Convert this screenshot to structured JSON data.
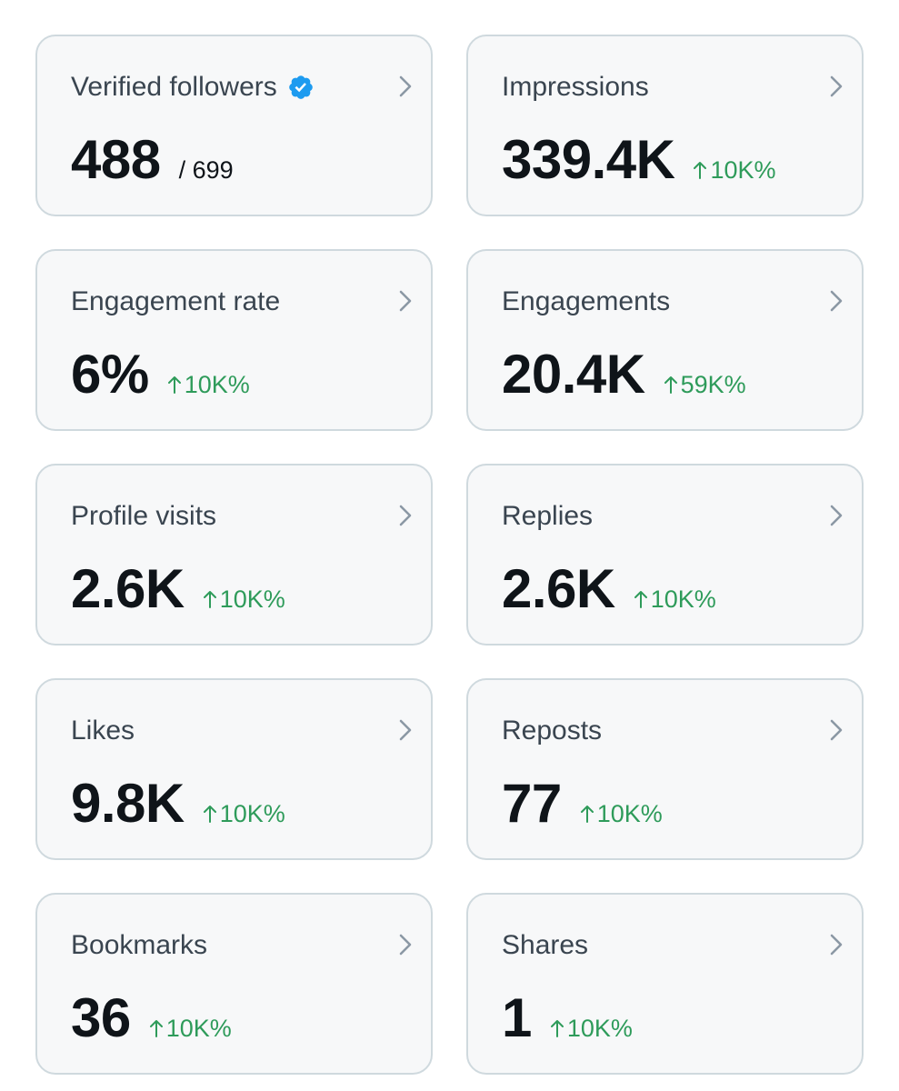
{
  "colors": {
    "card_background": "#f7f8f9",
    "card_border": "#cfd9de",
    "title_text": "#3a4550",
    "value_text": "#0f1419",
    "positive_change": "#2e9b5a",
    "verified_badge": "#1d9bf0",
    "chevron": "#8b98a5"
  },
  "cards": [
    {
      "title": "Verified followers",
      "value": "488",
      "total": "/ 699",
      "change": "",
      "title_icon": "verified-badge-icon",
      "trailing_icon": "chevron-right-icon"
    },
    {
      "title": "Impressions",
      "value": "339.4K",
      "total": "",
      "change": "10K%",
      "change_icon": "arrow-up-icon",
      "trailing_icon": "chevron-right-icon"
    },
    {
      "title": "Engagement rate",
      "value": "6%",
      "total": "",
      "change": "10K%",
      "change_icon": "arrow-up-icon",
      "trailing_icon": "chevron-right-icon"
    },
    {
      "title": "Engagements",
      "value": "20.4K",
      "total": "",
      "change": "59K%",
      "change_icon": "arrow-up-icon",
      "trailing_icon": "chevron-right-icon"
    },
    {
      "title": "Profile visits",
      "value": "2.6K",
      "total": "",
      "change": "10K%",
      "change_icon": "arrow-up-icon",
      "trailing_icon": "chevron-right-icon"
    },
    {
      "title": "Replies",
      "value": "2.6K",
      "total": "",
      "change": "10K%",
      "change_icon": "arrow-up-icon",
      "trailing_icon": "chevron-right-icon"
    },
    {
      "title": "Likes",
      "value": "9.8K",
      "total": "",
      "change": "10K%",
      "change_icon": "arrow-up-icon",
      "trailing_icon": "chevron-right-icon"
    },
    {
      "title": "Reposts",
      "value": "77",
      "total": "",
      "change": "10K%",
      "change_icon": "arrow-up-icon",
      "trailing_icon": "chevron-right-icon"
    },
    {
      "title": "Bookmarks",
      "value": "36",
      "total": "",
      "change": "10K%",
      "change_icon": "arrow-up-icon",
      "trailing_icon": "chevron-right-icon"
    },
    {
      "title": "Shares",
      "value": "1",
      "total": "",
      "change": "10K%",
      "change_icon": "arrow-up-icon",
      "trailing_icon": "chevron-right-icon"
    }
  ]
}
